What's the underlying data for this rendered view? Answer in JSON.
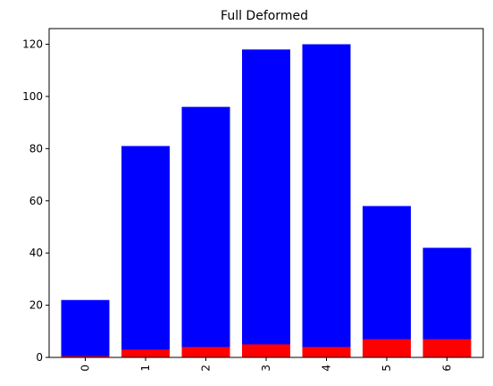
{
  "chart_data": {
    "type": "bar",
    "stacked": false,
    "overlay": true,
    "title": "Full Deformed",
    "xlabel": "",
    "ylabel": "",
    "categories": [
      "0",
      "1",
      "2",
      "3",
      "4",
      "5",
      "6"
    ],
    "x_tick_rotation": 90,
    "ylim": [
      0,
      126
    ],
    "yticks": [
      0,
      20,
      40,
      60,
      80,
      100,
      120
    ],
    "grid": false,
    "series": [
      {
        "values": [
          22,
          81,
          96,
          118,
          120,
          58,
          42
        ],
        "color": "#0000ff"
      },
      {
        "values": [
          0.5,
          3,
          4,
          5,
          4,
          7,
          7
        ],
        "color": "#ff0000"
      }
    ]
  }
}
